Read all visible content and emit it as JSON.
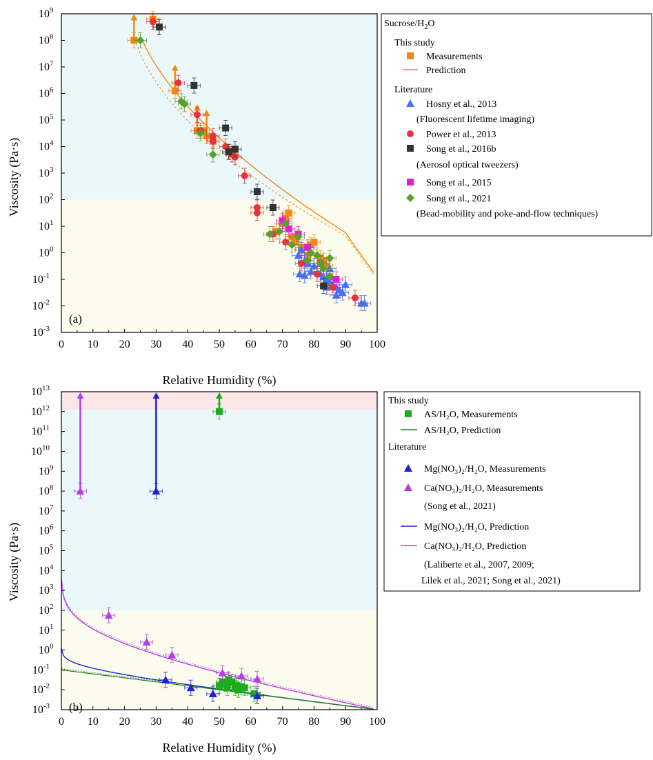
{
  "chart_data": [
    {
      "type": "scatter",
      "panel_label": "(a)",
      "xlabel": "Relative Humidity (%)",
      "ylabel": "Viscosity (Pa·s)",
      "xlim": [
        0,
        100
      ],
      "ylim_log10": [
        -3,
        9
      ],
      "xticks": [
        "0",
        "10",
        "20",
        "30",
        "40",
        "50",
        "60",
        "70",
        "80",
        "90",
        "100"
      ],
      "ytick_exponents": [
        "-3",
        "-2",
        "-1",
        "0",
        "1",
        "2",
        "3",
        "4",
        "5",
        "6",
        "7",
        "8",
        "9"
      ],
      "background_bands": [
        {
          "from": 2,
          "to": 9,
          "color": "#eaf8fb"
        },
        {
          "from": -3,
          "to": 2,
          "color": "#fbfcee"
        }
      ],
      "legend": {
        "title": "Sucrose/H",
        "title_sub": "2",
        "title_tail": "O",
        "this_study_heading": "This study",
        "literature_heading": "Literature",
        "entries": [
          {
            "label": "Measurements",
            "marker": "square",
            "color": "#f5870f"
          },
          {
            "label": "Prediction",
            "marker": "line",
            "color": "#f5870f"
          },
          {
            "label": "Hosny et al., 2013",
            "marker": "triangle",
            "color": "#4a6ef0"
          },
          {
            "label": "(Fluorescent lifetime imaging)",
            "marker": "none",
            "color": "#000000"
          },
          {
            "label": "Power et al., 2013",
            "marker": "circle",
            "color": "#e8323c"
          },
          {
            "label": "Song et al., 2016b",
            "marker": "square",
            "color": "#333333"
          },
          {
            "label": "(Aerosol optical tweezers)",
            "marker": "none",
            "color": "#000000"
          },
          {
            "label": "Song et al., 2015",
            "marker": "square",
            "color": "#e619e0"
          },
          {
            "label": "Song et al., 2021",
            "marker": "diamond",
            "color": "#5aa02c"
          },
          {
            "label": "(Bead-mobility and poke-and-flow techniques)",
            "marker": "none",
            "color": "#000000"
          }
        ]
      },
      "series": [
        {
          "name": "Measurements",
          "marker": "square",
          "color": "#f5870f",
          "points": [
            [
              23,
              8.0
            ],
            [
              29,
              8.8
            ],
            [
              36,
              6.1
            ],
            [
              43,
              4.6
            ],
            [
              45,
              4.6
            ],
            [
              46,
              4.4
            ],
            [
              48,
              4.2
            ],
            [
              53,
              3.8
            ],
            [
              68,
              0.8
            ],
            [
              70,
              1.1
            ],
            [
              71,
              1.3
            ],
            [
              72,
              1.5
            ],
            [
              73,
              0.6
            ],
            [
              74,
              0.4
            ],
            [
              76,
              0.2
            ],
            [
              78,
              -0.1
            ],
            [
              79,
              0.3
            ],
            [
              80,
              0.4
            ],
            [
              82,
              -0.2
            ],
            [
              83,
              -0.3
            ],
            [
              84,
              -0.5
            ],
            [
              85,
              -0.9
            ]
          ],
          "lower_limit_points": [
            [
              23,
              8.0
            ],
            [
              36,
              6.1
            ],
            [
              43,
              4.6
            ],
            [
              46,
              4.4
            ]
          ]
        },
        {
          "name": "Hosny et al., 2013",
          "marker": "triangle",
          "color": "#4a6ef0",
          "points": [
            [
              75,
              -0.1
            ],
            [
              76,
              0.1
            ],
            [
              77,
              -0.3
            ],
            [
              78,
              -0.4
            ],
            [
              79,
              -0.7
            ],
            [
              80,
              -0.5
            ],
            [
              82,
              -0.8
            ],
            [
              83,
              -0.9
            ],
            [
              84,
              -1.0
            ],
            [
              85,
              -0.6
            ],
            [
              86,
              -1.2
            ],
            [
              87,
              -1.3
            ],
            [
              88,
              -1.4
            ],
            [
              89,
              -1.5
            ],
            [
              90,
              -1.2
            ],
            [
              95,
              -1.9
            ],
            [
              96,
              -1.9
            ],
            [
              75.5,
              -0.8
            ],
            [
              77,
              -0.85
            ],
            [
              84,
              -1.3
            ],
            [
              85,
              -1.1
            ],
            [
              87,
              -1.6
            ]
          ]
        },
        {
          "name": "Power et al., 2013",
          "marker": "circle",
          "color": "#e8323c",
          "points": [
            [
              29,
              8.7
            ],
            [
              31,
              8.5
            ],
            [
              37,
              6.4
            ],
            [
              43,
              5.2
            ],
            [
              44,
              4.6
            ],
            [
              48,
              4.2
            ],
            [
              48,
              4.4
            ],
            [
              52,
              4.0
            ],
            [
              54,
              3.7
            ],
            [
              55,
              3.6
            ],
            [
              58,
              2.9
            ],
            [
              62,
              1.5
            ],
            [
              62,
              1.7
            ],
            [
              67,
              0.7
            ],
            [
              71,
              0.4
            ],
            [
              76,
              -0.4
            ],
            [
              81,
              -0.8
            ],
            [
              86,
              -1.3
            ],
            [
              93,
              -1.7
            ]
          ]
        },
        {
          "name": "Song et al., 2016b",
          "marker": "square",
          "color": "#333333",
          "points": [
            [
              31,
              8.5
            ],
            [
              42,
              6.3
            ],
            [
              52,
              4.7
            ],
            [
              53,
              3.8
            ],
            [
              55,
              3.9
            ],
            [
              62,
              2.3
            ],
            [
              67,
              1.7
            ],
            [
              83,
              -1.25
            ]
          ]
        },
        {
          "name": "Song et al., 2015",
          "marker": "square",
          "color": "#e619e0",
          "points": [
            [
              70,
              1.2
            ],
            [
              72,
              0.9
            ],
            [
              75,
              0.7
            ],
            [
              78,
              0.2
            ],
            [
              82,
              -0.4
            ],
            [
              87,
              -1.0
            ]
          ]
        },
        {
          "name": "Song et al., 2021",
          "marker": "diamond",
          "color": "#5aa02c",
          "points": [
            [
              25,
              8.0
            ],
            [
              38,
              5.7
            ],
            [
              39,
              5.6
            ],
            [
              44,
              4.5
            ],
            [
              48,
              3.7
            ],
            [
              66,
              0.7
            ],
            [
              69,
              0.8
            ],
            [
              71,
              1.1
            ],
            [
              73,
              0.3
            ],
            [
              75,
              0.6
            ],
            [
              78,
              -0.3
            ],
            [
              79,
              0.0
            ],
            [
              81,
              -0.1
            ],
            [
              82,
              -0.4
            ],
            [
              83,
              -0.6
            ],
            [
              85,
              -0.9
            ],
            [
              85,
              -0.2
            ]
          ]
        }
      ]
    },
    {
      "type": "scatter",
      "panel_label": "(b)",
      "xlabel": "Relative Humidity (%)",
      "ylabel": "Viscosity (Pa·s)",
      "xlim": [
        0,
        100
      ],
      "ylim_log10": [
        -3,
        13
      ],
      "xticks": [
        "0",
        "10",
        "20",
        "30",
        "40",
        "50",
        "60",
        "70",
        "80",
        "90",
        "100"
      ],
      "ytick_exponents": [
        "-3",
        "-2",
        "-1",
        "0",
        "1",
        "2",
        "3",
        "4",
        "5",
        "6",
        "7",
        "8",
        "9",
        "10",
        "11",
        "12",
        "13"
      ],
      "background_bands": [
        {
          "from": 12.1,
          "to": 13,
          "color": "#fce6e6"
        },
        {
          "from": 2,
          "to": 12.1,
          "color": "#eaf8fb"
        },
        {
          "from": -3,
          "to": 2,
          "color": "#fbfcee"
        }
      ],
      "legend": {
        "this_study_heading": "This study",
        "literature_heading": "Literature",
        "entries": [
          {
            "label": "AS/H₂O, Measurements",
            "marker": "square",
            "color": "#1fab1f"
          },
          {
            "label": "AS/H₂O, Prediction",
            "marker": "line",
            "color": "#1b7d1b"
          },
          {
            "label": "Mg(NO₃)₂/H₂O, Measurements",
            "marker": "triangle",
            "color": "#2020d8"
          },
          {
            "label": "Ca(NO₃)₂/H₂O, Measurements",
            "marker": "triangle",
            "color": "#b23fe6"
          },
          {
            "label": "(Song et al., 2021)",
            "marker": "none",
            "color": "#000000"
          },
          {
            "label": "Mg(NO₃)₂/H₂O, Prediction",
            "marker": "line",
            "color": "#2020d8"
          },
          {
            "label": "Ca(NO₃)₂/H₂O, Prediction",
            "marker": "line",
            "color": "#b23fe6"
          },
          {
            "label": "(Laliberte et al., 2007, 2009;",
            "marker": "none",
            "color": "#000000"
          },
          {
            "label": " Lilek et al., 2021; Song et al., 2021)",
            "marker": "none",
            "color": "#000000"
          }
        ]
      },
      "series": [
        {
          "name": "AS/H₂O, Measurements",
          "marker": "square",
          "color": "#1fab1f",
          "points": [
            [
              50,
              12.0
            ],
            [
              50,
              -1.8
            ],
            [
              51,
              -1.6
            ],
            [
              52,
              -1.7
            ],
            [
              52.5,
              -1.9
            ],
            [
              53,
              -1.5
            ],
            [
              54,
              -1.6
            ],
            [
              55,
              -1.9
            ],
            [
              55.5,
              -1.8
            ],
            [
              56,
              -2.0
            ],
            [
              57,
              -1.85
            ],
            [
              58,
              -1.9
            ],
            [
              61,
              -2.2
            ],
            [
              62,
              -2.3
            ]
          ],
          "lower_limit_points": [
            [
              50,
              12.0
            ]
          ]
        },
        {
          "name": "Mg(NO₃)₂/H₂O, Measurements",
          "marker": "triangle",
          "color": "#2020d8",
          "points": [
            [
              30,
              8.0
            ],
            [
              33,
              -1.5
            ],
            [
              41,
              -1.9
            ],
            [
              48,
              -2.2
            ],
            [
              62,
              -2.3
            ]
          ],
          "lower_limit_points": [
            [
              30,
              8.0
            ]
          ]
        },
        {
          "name": "Ca(NO₃)₂/H₂O, Measurements",
          "marker": "triangle",
          "color": "#b23fe6",
          "points": [
            [
              6,
              8.0
            ],
            [
              15,
              1.75
            ],
            [
              27,
              0.4
            ],
            [
              35,
              -0.25
            ],
            [
              51,
              -1.15
            ],
            [
              57,
              -1.3
            ],
            [
              62,
              -1.45
            ]
          ],
          "lower_limit_points": [
            [
              6,
              8.0
            ]
          ]
        }
      ]
    }
  ]
}
